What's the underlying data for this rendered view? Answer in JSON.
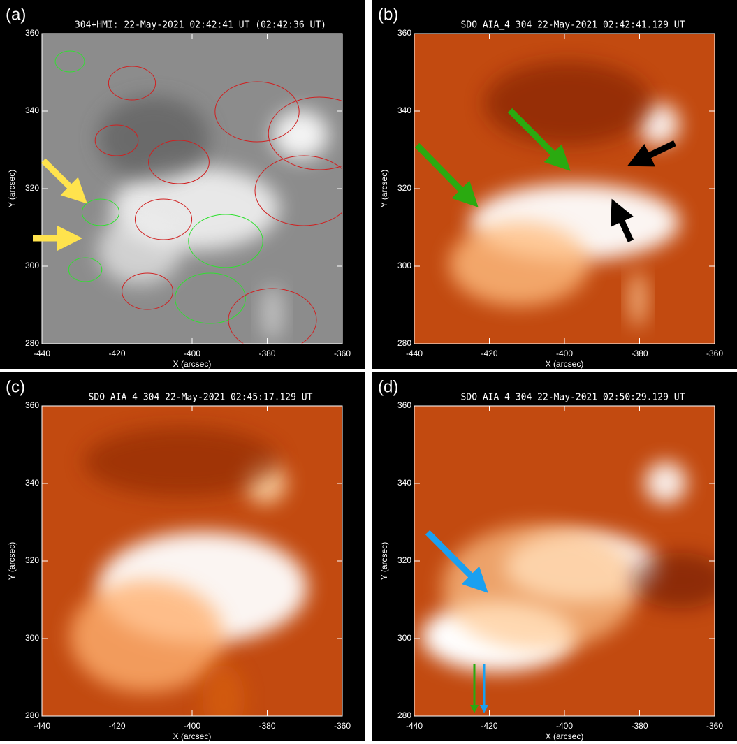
{
  "panels": [
    {
      "label": "(a)",
      "title": "304+HMI: 22-May-2021 02:42:41 UT (02:42:36 UT)",
      "xlabel": "X (arcsec)",
      "ylabel": "Y (arcsec)",
      "xlim": [
        -440,
        -360
      ],
      "ylim": [
        280,
        360
      ],
      "xticks": [
        -440,
        -420,
        -400,
        -380,
        -360
      ],
      "yticks": [
        280,
        300,
        320,
        340,
        360
      ]
    },
    {
      "label": "(b)",
      "title": "SDO AIA_4 304 22-May-2021 02:42:41.129 UT",
      "xlabel": "X (arcsec)",
      "ylabel": "Y (arcsec)",
      "xlim": [
        -440,
        -360
      ],
      "ylim": [
        280,
        360
      ],
      "xticks": [
        -440,
        -420,
        -400,
        -380,
        -360
      ],
      "yticks": [
        280,
        300,
        320,
        340,
        360
      ]
    },
    {
      "label": "(c)",
      "title": "SDO AIA_4 304 22-May-2021 02:45:17.129 UT",
      "xlabel": "X (arcsec)",
      "ylabel": "Y (arcsec)",
      "xlim": [
        -440,
        -360
      ],
      "ylim": [
        280,
        360
      ],
      "xticks": [
        -440,
        -420,
        -400,
        -380,
        -360
      ],
      "yticks": [
        280,
        300,
        320,
        340,
        360
      ]
    },
    {
      "label": "(d)",
      "title": "SDO AIA_4 304 22-May-2021 02:50:29.129 UT",
      "xlabel": "X (arcsec)",
      "ylabel": "Y (arcsec)",
      "xlim": [
        -440,
        -360
      ],
      "ylim": [
        280,
        360
      ],
      "xticks": [
        -440,
        -420,
        -400,
        -380,
        -360
      ],
      "yticks": [
        280,
        300,
        320,
        340,
        360
      ]
    }
  ]
}
